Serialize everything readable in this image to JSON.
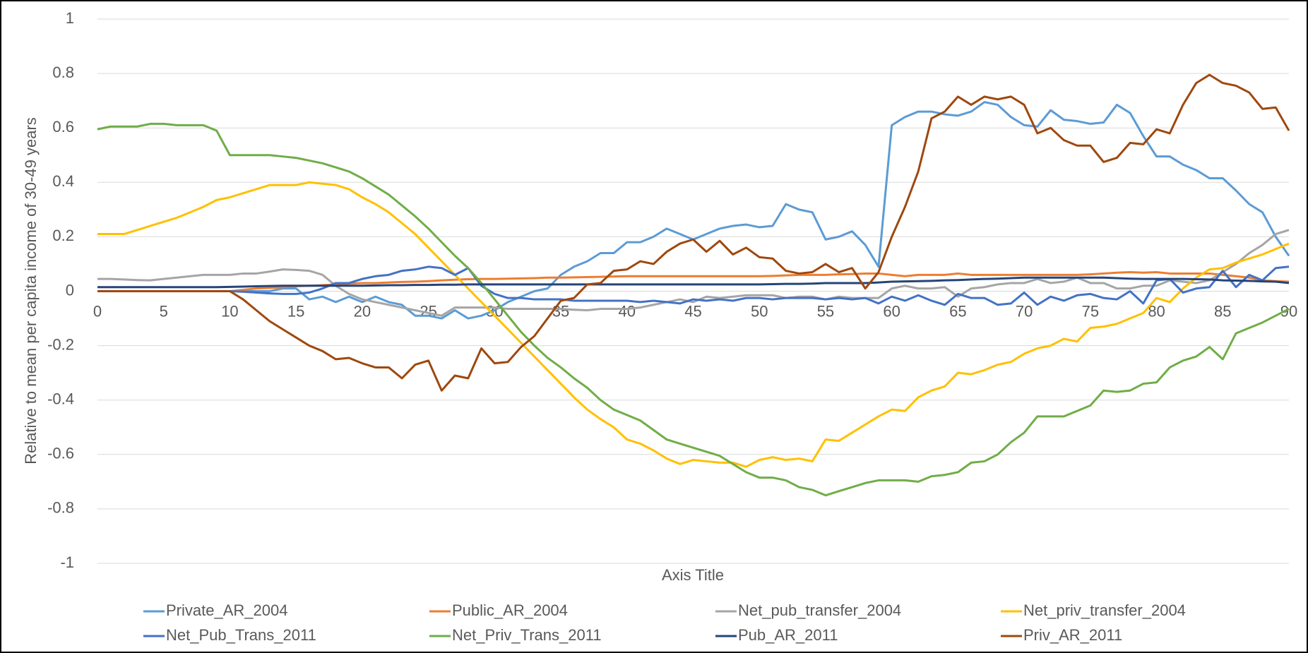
{
  "chart_data": {
    "type": "line",
    "x_label": "Axis Title",
    "y_label": "Relative to mean per capita income of 30-49 years",
    "x": [
      0,
      1,
      2,
      3,
      4,
      5,
      6,
      7,
      8,
      9,
      10,
      11,
      12,
      13,
      14,
      15,
      16,
      17,
      18,
      19,
      20,
      21,
      22,
      23,
      24,
      25,
      26,
      27,
      28,
      29,
      30,
      31,
      32,
      33,
      34,
      35,
      36,
      37,
      38,
      39,
      40,
      41,
      42,
      43,
      44,
      45,
      46,
      47,
      48,
      49,
      50,
      51,
      52,
      53,
      54,
      55,
      56,
      57,
      58,
      59,
      60,
      61,
      62,
      63,
      64,
      65,
      66,
      67,
      68,
      69,
      70,
      71,
      72,
      73,
      74,
      75,
      76,
      77,
      78,
      79,
      80,
      81,
      82,
      83,
      84,
      85,
      86,
      87,
      88,
      89,
      90
    ],
    "xlim": [
      0,
      90
    ],
    "xticks": [
      0,
      5,
      10,
      15,
      20,
      25,
      30,
      35,
      40,
      45,
      50,
      55,
      60,
      65,
      70,
      75,
      80,
      85,
      90
    ],
    "ylim": [
      -1,
      1
    ],
    "yticks": [
      -1,
      -0.8,
      -0.6,
      -0.4,
      -0.2,
      0,
      0.2,
      0.4,
      0.6,
      0.8,
      1
    ],
    "grid": true,
    "legend": "bottom",
    "series": [
      {
        "name": "Private_AR_2004",
        "color": "#5b9bd5",
        "values": [
          0,
          0,
          0,
          0,
          0,
          0,
          0,
          0,
          0,
          0,
          0,
          0,
          0,
          0,
          0.01,
          0.01,
          -0.03,
          -0.02,
          -0.04,
          -0.02,
          -0.04,
          -0.02,
          -0.04,
          -0.05,
          -0.09,
          -0.09,
          -0.1,
          -0.07,
          -0.1,
          -0.09,
          -0.07,
          -0.04,
          -0.02,
          0,
          0.01,
          0.06,
          0.09,
          0.11,
          0.14,
          0.14,
          0.18,
          0.18,
          0.2,
          0.23,
          0.21,
          0.19,
          0.21,
          0.23,
          0.24,
          0.245,
          0.235,
          0.24,
          0.32,
          0.3,
          0.29,
          0.19,
          0.2,
          0.22,
          0.17,
          0.09,
          0.61,
          0.64,
          0.66,
          0.66,
          0.65,
          0.645,
          0.66,
          0.695,
          0.685,
          0.64,
          0.61,
          0.605,
          0.665,
          0.63,
          0.625,
          0.615,
          0.62,
          0.685,
          0.655,
          0.57,
          0.495,
          0.495,
          0.465,
          0.445,
          0.415,
          0.415,
          0.37,
          0.32,
          0.29,
          0.2,
          0.13
        ]
      },
      {
        "name": "Public_AR_2004",
        "color": "#ed7d31",
        "values": [
          0,
          0,
          0,
          0,
          0,
          0,
          0,
          0,
          0,
          0,
          0,
          0.005,
          0.01,
          0.012,
          0.015,
          0.018,
          0.02,
          0.022,
          0.025,
          0.028,
          0.03,
          0.03,
          0.032,
          0.034,
          0.035,
          0.037,
          0.04,
          0.042,
          0.044,
          0.045,
          0.045,
          0.046,
          0.047,
          0.048,
          0.05,
          0.05,
          0.051,
          0.052,
          0.053,
          0.054,
          0.055,
          0.055,
          0.055,
          0.055,
          0.055,
          0.055,
          0.055,
          0.055,
          0.055,
          0.055,
          0.055,
          0.056,
          0.058,
          0.06,
          0.06,
          0.06,
          0.062,
          0.063,
          0.065,
          0.065,
          0.06,
          0.055,
          0.06,
          0.06,
          0.06,
          0.065,
          0.06,
          0.06,
          0.06,
          0.06,
          0.06,
          0.06,
          0.06,
          0.06,
          0.06,
          0.062,
          0.065,
          0.068,
          0.07,
          0.068,
          0.07,
          0.065,
          0.065,
          0.065,
          0.065,
          0.06,
          0.055,
          0.05,
          0.04,
          0.037,
          0.035
        ]
      },
      {
        "name": "Net_pub_transfer_2004",
        "color": "#a5a5a5",
        "values": [
          0.045,
          0.045,
          0.043,
          0.041,
          0.04,
          0.045,
          0.05,
          0.055,
          0.06,
          0.06,
          0.06,
          0.065,
          0.065,
          0.072,
          0.08,
          0.078,
          0.075,
          0.06,
          0.02,
          -0.01,
          -0.03,
          -0.04,
          -0.05,
          -0.06,
          -0.07,
          -0.08,
          -0.09,
          -0.06,
          -0.06,
          -0.06,
          -0.06,
          -0.065,
          -0.065,
          -0.065,
          -0.065,
          -0.065,
          -0.068,
          -0.07,
          -0.065,
          -0.065,
          -0.065,
          -0.06,
          -0.05,
          -0.04,
          -0.03,
          -0.04,
          -0.02,
          -0.025,
          -0.02,
          -0.015,
          -0.015,
          -0.015,
          -0.025,
          -0.02,
          -0.02,
          -0.03,
          -0.02,
          -0.025,
          -0.025,
          -0.025,
          0.01,
          0.02,
          0.01,
          0.01,
          0.015,
          -0.02,
          0.01,
          0.015,
          0.025,
          0.03,
          0.03,
          0.045,
          0.03,
          0.035,
          0.05,
          0.03,
          0.03,
          0.01,
          0.01,
          0.02,
          0.02,
          0.04,
          0.035,
          0.03,
          0.04,
          0.07,
          0.1,
          0.14,
          0.17,
          0.21,
          0.225
        ]
      },
      {
        "name": "Net_priv_transfer_2004",
        "color": "#ffc000",
        "values": [
          0.21,
          0.21,
          0.21,
          0.225,
          0.24,
          0.255,
          0.27,
          0.29,
          0.31,
          0.335,
          0.345,
          0.36,
          0.375,
          0.39,
          0.39,
          0.39,
          0.4,
          0.395,
          0.39,
          0.375,
          0.345,
          0.32,
          0.29,
          0.25,
          0.21,
          0.16,
          0.11,
          0.06,
          0.01,
          -0.04,
          -0.09,
          -0.14,
          -0.19,
          -0.24,
          -0.29,
          -0.34,
          -0.39,
          -0.435,
          -0.47,
          -0.5,
          -0.545,
          -0.56,
          -0.585,
          -0.615,
          -0.635,
          -0.62,
          -0.625,
          -0.63,
          -0.63,
          -0.645,
          -0.62,
          -0.61,
          -0.62,
          -0.615,
          -0.625,
          -0.545,
          -0.55,
          -0.52,
          -0.49,
          -0.46,
          -0.435,
          -0.44,
          -0.39,
          -0.365,
          -0.35,
          -0.3,
          -0.305,
          -0.29,
          -0.27,
          -0.26,
          -0.23,
          -0.21,
          -0.2,
          -0.175,
          -0.185,
          -0.135,
          -0.13,
          -0.12,
          -0.1,
          -0.08,
          -0.025,
          -0.04,
          0.01,
          0.05,
          0.08,
          0.085,
          0.105,
          0.12,
          0.135,
          0.155,
          0.175
        ]
      },
      {
        "name": "Net_Pub_Trans_2011",
        "color": "#4472c4",
        "values": [
          0,
          0,
          0,
          0,
          0,
          0,
          0,
          0,
          0,
          0,
          0,
          -0.002,
          -0.005,
          -0.008,
          -0.01,
          -0.01,
          -0.005,
          0.01,
          0.03,
          0.03,
          0.045,
          0.055,
          0.06,
          0.075,
          0.08,
          0.09,
          0.085,
          0.06,
          0.085,
          0.02,
          -0.01,
          -0.025,
          -0.025,
          -0.03,
          -0.03,
          -0.03,
          -0.035,
          -0.035,
          -0.035,
          -0.035,
          -0.035,
          -0.04,
          -0.035,
          -0.04,
          -0.045,
          -0.03,
          -0.035,
          -0.03,
          -0.035,
          -0.025,
          -0.025,
          -0.03,
          -0.025,
          -0.025,
          -0.025,
          -0.03,
          -0.025,
          -0.03,
          -0.025,
          -0.045,
          -0.02,
          -0.035,
          -0.015,
          -0.035,
          -0.05,
          -0.01,
          -0.025,
          -0.025,
          -0.05,
          -0.045,
          -0.005,
          -0.05,
          -0.02,
          -0.035,
          -0.015,
          -0.01,
          -0.025,
          -0.03,
          0,
          -0.045,
          0.04,
          0.045,
          -0.005,
          0.01,
          0.015,
          0.075,
          0.015,
          0.06,
          0.04,
          0.085,
          0.09
        ]
      },
      {
        "name": "Net_Priv_Trans_2011",
        "color": "#70ad47",
        "values": [
          0.595,
          0.605,
          0.605,
          0.605,
          0.615,
          0.615,
          0.61,
          0.61,
          0.61,
          0.59,
          0.5,
          0.5,
          0.5,
          0.5,
          0.495,
          0.49,
          0.48,
          0.47,
          0.455,
          0.44,
          0.415,
          0.385,
          0.355,
          0.315,
          0.275,
          0.23,
          0.18,
          0.13,
          0.085,
          0.03,
          -0.03,
          -0.09,
          -0.15,
          -0.2,
          -0.245,
          -0.28,
          -0.32,
          -0.355,
          -0.4,
          -0.435,
          -0.455,
          -0.475,
          -0.51,
          -0.545,
          -0.56,
          -0.575,
          -0.59,
          -0.605,
          -0.635,
          -0.665,
          -0.685,
          -0.685,
          -0.695,
          -0.72,
          -0.73,
          -0.75,
          -0.735,
          -0.72,
          -0.705,
          -0.695,
          -0.695,
          -0.695,
          -0.7,
          -0.68,
          -0.675,
          -0.665,
          -0.63,
          -0.625,
          -0.6,
          -0.555,
          -0.52,
          -0.46,
          -0.46,
          -0.46,
          -0.44,
          -0.42,
          -0.365,
          -0.37,
          -0.365,
          -0.34,
          -0.335,
          -0.28,
          -0.255,
          -0.24,
          -0.205,
          -0.25,
          -0.155,
          -0.135,
          -0.115,
          -0.09,
          -0.065
        ]
      },
      {
        "name": "Pub_AR_2011",
        "color": "#264478",
        "values": [
          0.015,
          0.015,
          0.015,
          0.015,
          0.015,
          0.015,
          0.015,
          0.015,
          0.015,
          0.015,
          0.016,
          0.017,
          0.018,
          0.019,
          0.02,
          0.02,
          0.02,
          0.02,
          0.02,
          0.02,
          0.02,
          0.021,
          0.022,
          0.022,
          0.023,
          0.023,
          0.024,
          0.024,
          0.025,
          0.025,
          0.025,
          0.025,
          0.025,
          0.025,
          0.025,
          0.025,
          0.025,
          0.025,
          0.025,
          0.025,
          0.025,
          0.025,
          0.025,
          0.025,
          0.025,
          0.025,
          0.025,
          0.025,
          0.025,
          0.025,
          0.025,
          0.026,
          0.027,
          0.027,
          0.028,
          0.03,
          0.03,
          0.03,
          0.03,
          0.032,
          0.035,
          0.036,
          0.037,
          0.038,
          0.04,
          0.041,
          0.043,
          0.045,
          0.046,
          0.048,
          0.05,
          0.05,
          0.05,
          0.05,
          0.05,
          0.05,
          0.05,
          0.048,
          0.046,
          0.045,
          0.045,
          0.045,
          0.045,
          0.044,
          0.043,
          0.04,
          0.039,
          0.038,
          0.036,
          0.035,
          0.03
        ]
      },
      {
        "name": "Priv_AR_2011",
        "color": "#9e480e",
        "values": [
          0,
          0,
          0,
          0,
          0,
          0,
          0,
          0,
          0,
          0,
          0,
          -0.03,
          -0.07,
          -0.11,
          -0.14,
          -0.17,
          -0.2,
          -0.22,
          -0.25,
          -0.245,
          -0.265,
          -0.28,
          -0.28,
          -0.32,
          -0.27,
          -0.255,
          -0.365,
          -0.31,
          -0.32,
          -0.21,
          -0.265,
          -0.26,
          -0.205,
          -0.165,
          -0.1,
          -0.035,
          -0.025,
          0.025,
          0.03,
          0.075,
          0.08,
          0.11,
          0.1,
          0.145,
          0.175,
          0.19,
          0.145,
          0.185,
          0.135,
          0.16,
          0.125,
          0.12,
          0.075,
          0.065,
          0.07,
          0.1,
          0.07,
          0.085,
          0.01,
          0.07,
          0.2,
          0.31,
          0.44,
          0.635,
          0.66,
          0.715,
          0.685,
          0.715,
          0.705,
          0.715,
          0.685,
          0.58,
          0.6,
          0.555,
          0.535,
          0.535,
          0.475,
          0.49,
          0.545,
          0.54,
          0.595,
          0.58,
          0.685,
          0.765,
          0.795,
          0.765,
          0.755,
          0.73,
          0.67,
          0.675,
          0.59
        ]
      }
    ]
  }
}
